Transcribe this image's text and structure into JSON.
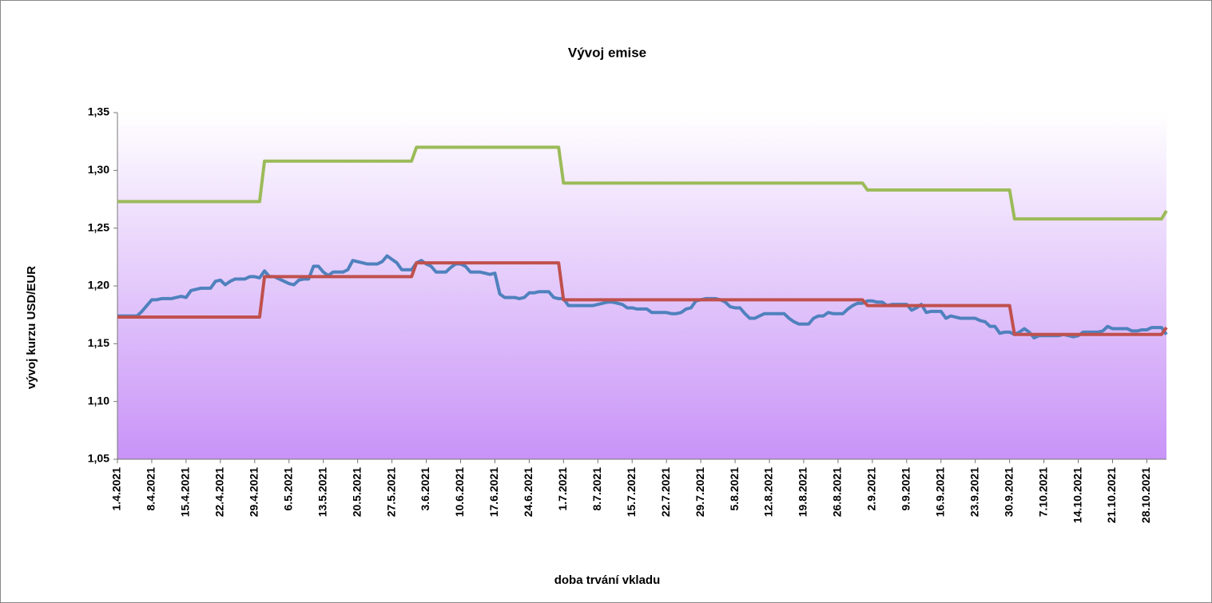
{
  "chart_data": {
    "type": "line",
    "title": "Vývoj emise",
    "y_label": "vývoj kurzu USD/EUR",
    "x_label": "doba trvání vkladu",
    "categories": [
      "1.4.2021",
      null,
      null,
      null,
      null,
      null,
      null,
      "8.4.2021",
      null,
      null,
      null,
      null,
      null,
      null,
      "15.4.2021",
      null,
      null,
      null,
      null,
      null,
      null,
      "22.4.2021",
      null,
      null,
      null,
      null,
      null,
      null,
      "29.4.2021",
      null,
      null,
      null,
      null,
      null,
      null,
      "6.5.2021",
      null,
      null,
      null,
      null,
      null,
      null,
      "13.5.2021",
      null,
      null,
      null,
      null,
      null,
      null,
      "20.5.2021",
      null,
      null,
      null,
      null,
      null,
      null,
      "27.5.2021",
      null,
      null,
      null,
      null,
      null,
      null,
      "3.6.2021",
      null,
      null,
      null,
      null,
      null,
      null,
      "10.6.2021",
      null,
      null,
      null,
      null,
      null,
      null,
      "17.6.2021",
      null,
      null,
      null,
      null,
      null,
      null,
      "24.6.2021",
      null,
      null,
      null,
      null,
      null,
      null,
      "1.7.2021",
      null,
      null,
      null,
      null,
      null,
      null,
      "8.7.2021",
      null,
      null,
      null,
      null,
      null,
      null,
      "15.7.2021",
      null,
      null,
      null,
      null,
      null,
      null,
      "22.7.2021",
      null,
      null,
      null,
      null,
      null,
      null,
      "29.7.2021",
      null,
      null,
      null,
      null,
      null,
      null,
      "5.8.2021",
      null,
      null,
      null,
      null,
      null,
      null,
      "12.8.2021",
      null,
      null,
      null,
      null,
      null,
      null,
      "19.8.2021",
      null,
      null,
      null,
      null,
      null,
      null,
      "26.8.2021",
      null,
      null,
      null,
      null,
      null,
      null,
      "2.9.2021",
      null,
      null,
      null,
      null,
      null,
      null,
      "9.9.2021",
      null,
      null,
      null,
      null,
      null,
      null,
      "16.9.2021",
      null,
      null,
      null,
      null,
      null,
      null,
      "23.9.2021",
      null,
      null,
      null,
      null,
      null,
      null,
      "30.9.2021",
      null,
      null,
      null,
      null,
      null,
      null,
      "7.10.2021",
      null,
      null,
      null,
      null,
      null,
      null,
      "14.10.2021",
      null,
      null,
      null,
      null,
      null,
      null,
      "21.10.2021",
      null,
      null,
      null,
      null,
      null,
      null,
      "28.10.2021",
      null,
      null,
      null,
      null
    ],
    "series": [
      {
        "color": "#4f81bd",
        "values": [
          1.174,
          1.174,
          1.174,
          1.174,
          1.174,
          1.178,
          1.183,
          1.188,
          1.188,
          1.189,
          1.189,
          1.189,
          1.19,
          1.191,
          1.19,
          1.196,
          1.197,
          1.198,
          1.198,
          1.198,
          1.204,
          1.205,
          1.201,
          1.204,
          1.206,
          1.206,
          1.206,
          1.208,
          1.208,
          1.207,
          1.213,
          1.208,
          1.208,
          1.206,
          1.204,
          1.202,
          1.201,
          1.205,
          1.206,
          1.206,
          1.217,
          1.217,
          1.212,
          1.209,
          1.212,
          1.212,
          1.212,
          1.214,
          1.222,
          1.221,
          1.22,
          1.219,
          1.219,
          1.219,
          1.221,
          1.226,
          1.223,
          1.22,
          1.214,
          1.214,
          1.214,
          1.22,
          1.222,
          1.219,
          1.217,
          1.212,
          1.212,
          1.212,
          1.216,
          1.219,
          1.219,
          1.217,
          1.212,
          1.212,
          1.212,
          1.211,
          1.21,
          1.211,
          1.193,
          1.19,
          1.19,
          1.19,
          1.189,
          1.19,
          1.194,
          1.194,
          1.195,
          1.195,
          1.195,
          1.19,
          1.189,
          1.189,
          1.183,
          1.183,
          1.183,
          1.183,
          1.183,
          1.183,
          1.184,
          1.185,
          1.186,
          1.186,
          1.185,
          1.184,
          1.181,
          1.181,
          1.18,
          1.18,
          1.18,
          1.177,
          1.177,
          1.177,
          1.177,
          1.176,
          1.176,
          1.177,
          1.18,
          1.181,
          1.187,
          1.188,
          1.189,
          1.189,
          1.189,
          1.188,
          1.186,
          1.182,
          1.181,
          1.181,
          1.176,
          1.172,
          1.172,
          1.174,
          1.176,
          1.176,
          1.176,
          1.176,
          1.176,
          1.172,
          1.169,
          1.167,
          1.167,
          1.167,
          1.172,
          1.174,
          1.174,
          1.177,
          1.176,
          1.176,
          1.176,
          1.18,
          1.183,
          1.185,
          1.185,
          1.187,
          1.187,
          1.186,
          1.186,
          1.183,
          1.184,
          1.184,
          1.184,
          1.184,
          1.179,
          1.181,
          1.184,
          1.177,
          1.178,
          1.178,
          1.178,
          1.172,
          1.174,
          1.173,
          1.172,
          1.172,
          1.172,
          1.172,
          1.17,
          1.169,
          1.165,
          1.165,
          1.159,
          1.16,
          1.16,
          1.158,
          1.16,
          1.163,
          1.16,
          1.155,
          1.157,
          1.157,
          1.157,
          1.157,
          1.157,
          1.158,
          1.157,
          1.156,
          1.157,
          1.16,
          1.16,
          1.16,
          1.16,
          1.161,
          1.165,
          1.163,
          1.163,
          1.163,
          1.163,
          1.161,
          1.161,
          1.162,
          1.162,
          1.164,
          1.164,
          1.164,
          1.158
        ]
      },
      {
        "color": "#c0504d",
        "values": [
          1.173,
          1.173,
          1.173,
          1.173,
          1.173,
          1.173,
          1.173,
          1.173,
          1.173,
          1.173,
          1.173,
          1.173,
          1.173,
          1.173,
          1.173,
          1.173,
          1.173,
          1.173,
          1.173,
          1.173,
          1.173,
          1.173,
          1.173,
          1.173,
          1.173,
          1.173,
          1.173,
          1.173,
          1.173,
          1.173,
          1.208,
          1.208,
          1.208,
          1.208,
          1.208,
          1.208,
          1.208,
          1.208,
          1.208,
          1.208,
          1.208,
          1.208,
          1.208,
          1.208,
          1.208,
          1.208,
          1.208,
          1.208,
          1.208,
          1.208,
          1.208,
          1.208,
          1.208,
          1.208,
          1.208,
          1.208,
          1.208,
          1.208,
          1.208,
          1.208,
          1.208,
          1.22,
          1.22,
          1.22,
          1.22,
          1.22,
          1.22,
          1.22,
          1.22,
          1.22,
          1.22,
          1.22,
          1.22,
          1.22,
          1.22,
          1.22,
          1.22,
          1.22,
          1.22,
          1.22,
          1.22,
          1.22,
          1.22,
          1.22,
          1.22,
          1.22,
          1.22,
          1.22,
          1.22,
          1.22,
          1.22,
          1.188,
          1.188,
          1.188,
          1.188,
          1.188,
          1.188,
          1.188,
          1.188,
          1.188,
          1.188,
          1.188,
          1.188,
          1.188,
          1.188,
          1.188,
          1.188,
          1.188,
          1.188,
          1.188,
          1.188,
          1.188,
          1.188,
          1.188,
          1.188,
          1.188,
          1.188,
          1.188,
          1.188,
          1.188,
          1.188,
          1.188,
          1.188,
          1.188,
          1.188,
          1.188,
          1.188,
          1.188,
          1.188,
          1.188,
          1.188,
          1.188,
          1.188,
          1.188,
          1.188,
          1.188,
          1.188,
          1.188,
          1.188,
          1.188,
          1.188,
          1.188,
          1.188,
          1.188,
          1.188,
          1.188,
          1.188,
          1.188,
          1.188,
          1.188,
          1.188,
          1.188,
          1.188,
          1.183,
          1.183,
          1.183,
          1.183,
          1.183,
          1.183,
          1.183,
          1.183,
          1.183,
          1.183,
          1.183,
          1.183,
          1.183,
          1.183,
          1.183,
          1.183,
          1.183,
          1.183,
          1.183,
          1.183,
          1.183,
          1.183,
          1.183,
          1.183,
          1.183,
          1.183,
          1.183,
          1.183,
          1.183,
          1.183,
          1.158,
          1.158,
          1.158,
          1.158,
          1.158,
          1.158,
          1.158,
          1.158,
          1.158,
          1.158,
          1.158,
          1.158,
          1.158,
          1.158,
          1.158,
          1.158,
          1.158,
          1.158,
          1.158,
          1.158,
          1.158,
          1.158,
          1.158,
          1.158,
          1.158,
          1.158,
          1.158,
          1.158,
          1.158,
          1.158,
          1.158,
          1.164
        ]
      },
      {
        "color": "#9bbb59",
        "values": [
          1.273,
          1.273,
          1.273,
          1.273,
          1.273,
          1.273,
          1.273,
          1.273,
          1.273,
          1.273,
          1.273,
          1.273,
          1.273,
          1.273,
          1.273,
          1.273,
          1.273,
          1.273,
          1.273,
          1.273,
          1.273,
          1.273,
          1.273,
          1.273,
          1.273,
          1.273,
          1.273,
          1.273,
          1.273,
          1.273,
          1.308,
          1.308,
          1.308,
          1.308,
          1.308,
          1.308,
          1.308,
          1.308,
          1.308,
          1.308,
          1.308,
          1.308,
          1.308,
          1.308,
          1.308,
          1.308,
          1.308,
          1.308,
          1.308,
          1.308,
          1.308,
          1.308,
          1.308,
          1.308,
          1.308,
          1.308,
          1.308,
          1.308,
          1.308,
          1.308,
          1.308,
          1.32,
          1.32,
          1.32,
          1.32,
          1.32,
          1.32,
          1.32,
          1.32,
          1.32,
          1.32,
          1.32,
          1.32,
          1.32,
          1.32,
          1.32,
          1.32,
          1.32,
          1.32,
          1.32,
          1.32,
          1.32,
          1.32,
          1.32,
          1.32,
          1.32,
          1.32,
          1.32,
          1.32,
          1.32,
          1.32,
          1.289,
          1.289,
          1.289,
          1.289,
          1.289,
          1.289,
          1.289,
          1.289,
          1.289,
          1.289,
          1.289,
          1.289,
          1.289,
          1.289,
          1.289,
          1.289,
          1.289,
          1.289,
          1.289,
          1.289,
          1.289,
          1.289,
          1.289,
          1.289,
          1.289,
          1.289,
          1.289,
          1.289,
          1.289,
          1.289,
          1.289,
          1.289,
          1.289,
          1.289,
          1.289,
          1.289,
          1.289,
          1.289,
          1.289,
          1.289,
          1.289,
          1.289,
          1.289,
          1.289,
          1.289,
          1.289,
          1.289,
          1.289,
          1.289,
          1.289,
          1.289,
          1.289,
          1.289,
          1.289,
          1.289,
          1.289,
          1.289,
          1.289,
          1.289,
          1.289,
          1.289,
          1.289,
          1.283,
          1.283,
          1.283,
          1.283,
          1.283,
          1.283,
          1.283,
          1.283,
          1.283,
          1.283,
          1.283,
          1.283,
          1.283,
          1.283,
          1.283,
          1.283,
          1.283,
          1.283,
          1.283,
          1.283,
          1.283,
          1.283,
          1.283,
          1.283,
          1.283,
          1.283,
          1.283,
          1.283,
          1.283,
          1.283,
          1.258,
          1.258,
          1.258,
          1.258,
          1.258,
          1.258,
          1.258,
          1.258,
          1.258,
          1.258,
          1.258,
          1.258,
          1.258,
          1.258,
          1.258,
          1.258,
          1.258,
          1.258,
          1.258,
          1.258,
          1.258,
          1.258,
          1.258,
          1.258,
          1.258,
          1.258,
          1.258,
          1.258,
          1.258,
          1.258,
          1.258,
          1.265
        ]
      }
    ],
    "ylim": [
      1.05,
      1.35
    ],
    "yticks": [
      {
        "value": 1.05,
        "label": "1,05"
      },
      {
        "value": 1.1,
        "label": "1,10"
      },
      {
        "value": 1.15,
        "label": "1,15"
      },
      {
        "value": 1.2,
        "label": "1,20"
      },
      {
        "value": 1.25,
        "label": "1,25"
      },
      {
        "value": 1.3,
        "label": "1,30"
      },
      {
        "value": 1.35,
        "label": "1,35"
      }
    ],
    "grid": false
  }
}
